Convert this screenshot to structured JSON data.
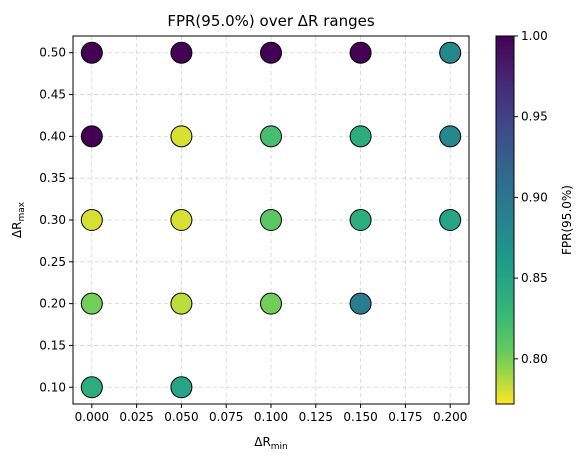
{
  "chart_data": {
    "type": "scatter",
    "title": "FPR(95.0%) over ΔR ranges",
    "xlabel": {
      "base": "ΔR",
      "sub": "min"
    },
    "ylabel": {
      "base": "ΔR",
      "sub": "max"
    },
    "xlim": [
      -0.0105,
      0.2105
    ],
    "ylim": [
      0.08,
      0.52
    ],
    "xticks": [
      0.0,
      0.025,
      0.05,
      0.075,
      0.1,
      0.125,
      0.15,
      0.175,
      0.2
    ],
    "xtick_labels": [
      "0.000",
      "0.025",
      "0.050",
      "0.075",
      "0.100",
      "0.125",
      "0.150",
      "0.175",
      "0.200"
    ],
    "yticks": [
      0.1,
      0.15,
      0.2,
      0.25,
      0.3,
      0.35,
      0.4,
      0.45,
      0.5
    ],
    "ytick_labels": [
      "0.10",
      "0.15",
      "0.20",
      "0.25",
      "0.30",
      "0.35",
      "0.40",
      "0.45",
      "0.50"
    ],
    "grid": true,
    "points": [
      {
        "x": 0.0,
        "y": 0.5,
        "value": 1.0
      },
      {
        "x": 0.05,
        "y": 0.5,
        "value": 1.0
      },
      {
        "x": 0.1,
        "y": 0.5,
        "value": 1.0
      },
      {
        "x": 0.15,
        "y": 0.5,
        "value": 1.0
      },
      {
        "x": 0.2,
        "y": 0.5,
        "value": 0.88
      },
      {
        "x": 0.0,
        "y": 0.4,
        "value": 1.0
      },
      {
        "x": 0.05,
        "y": 0.4,
        "value": 0.78
      },
      {
        "x": 0.1,
        "y": 0.4,
        "value": 0.82
      },
      {
        "x": 0.15,
        "y": 0.4,
        "value": 0.84
      },
      {
        "x": 0.2,
        "y": 0.4,
        "value": 0.88
      },
      {
        "x": 0.0,
        "y": 0.3,
        "value": 0.78
      },
      {
        "x": 0.05,
        "y": 0.3,
        "value": 0.78
      },
      {
        "x": 0.1,
        "y": 0.3,
        "value": 0.81
      },
      {
        "x": 0.15,
        "y": 0.3,
        "value": 0.84
      },
      {
        "x": 0.2,
        "y": 0.3,
        "value": 0.85
      },
      {
        "x": 0.0,
        "y": 0.2,
        "value": 0.8
      },
      {
        "x": 0.05,
        "y": 0.2,
        "value": 0.785
      },
      {
        "x": 0.1,
        "y": 0.2,
        "value": 0.8
      },
      {
        "x": 0.15,
        "y": 0.2,
        "value": 0.89
      },
      {
        "x": 0.0,
        "y": 0.1,
        "value": 0.84
      },
      {
        "x": 0.05,
        "y": 0.1,
        "value": 0.85
      }
    ],
    "colorbar": {
      "label": "FPR(95.0%)",
      "colormap": "viridis_r",
      "range": [
        0.772,
        1.0
      ],
      "ticks": [
        0.8,
        0.85,
        0.9,
        0.95,
        1.0
      ],
      "tick_labels": [
        "0.80",
        "0.85",
        "0.90",
        "0.95",
        "1.00"
      ]
    },
    "marker": {
      "edge_color": "#000000",
      "grid_color": "#d4d4d4"
    }
  }
}
